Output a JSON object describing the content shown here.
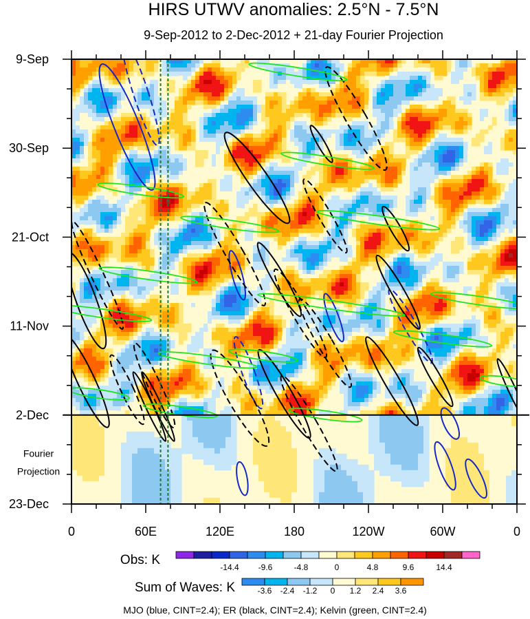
{
  "chart_data": {
    "type": "heatmap",
    "title": "HIRS UTWV anomalies: 2.5°N - 7.5°N",
    "subtitle": "9-Sep-2012 to 2-Dec-2012 + 21-day Fourier Projection",
    "x_ticks": [
      "0",
      "60E",
      "120E",
      "180",
      "120W",
      "60W",
      "0"
    ],
    "x_tick_values": [
      0,
      60,
      120,
      180,
      240,
      300,
      360
    ],
    "y_ticks": [
      "9-Sep",
      "30-Sep",
      "21-Oct",
      "11-Nov",
      "2-Dec",
      "23-Dec"
    ],
    "y_tick_values": [
      0,
      21,
      42,
      63,
      84,
      105
    ],
    "xlim": [
      0,
      360
    ],
    "ylim": [
      0,
      105
    ],
    "observation_end_day": 84,
    "projection_label": "Fourier\nProjection",
    "obs_colorbar": {
      "title": "Obs: K",
      "labels": [
        "-14.4",
        "-9.6",
        "-4.8",
        "0",
        "4.8",
        "9.6",
        "14.4"
      ],
      "levels": [
        -19.2,
        -16.8,
        -14.4,
        -12,
        -9.6,
        -7.2,
        -4.8,
        -2.4,
        0,
        2.4,
        4.8,
        7.2,
        9.6,
        12,
        14.4,
        16.8
      ],
      "colors": [
        "#8c28e6",
        "#1e1ea0",
        "#0a28c8",
        "#3264e6",
        "#2d8cf0",
        "#00b4f0",
        "#8cc8f0",
        "#c8e6fa",
        "#fffad2",
        "#ffe678",
        "#ffc81e",
        "#ffa000",
        "#ff6400",
        "#f01414",
        "#c80000",
        "#a02828",
        "#ff64c8"
      ]
    },
    "waves_colorbar": {
      "title": "Sum of Waves: K",
      "labels": [
        "-3.6",
        "-2.4",
        "-1.2",
        "0",
        "1.2",
        "2.4",
        "3.6"
      ],
      "levels": [
        -3.6,
        -2.4,
        -1.2,
        0,
        1.2,
        2.4,
        3.6
      ],
      "colors": [
        "#2d8cf0",
        "#00b4f0",
        "#8cc8f0",
        "#c8e6fa",
        "#fffad2",
        "#ffe678",
        "#ffc81e",
        "#ff9600"
      ]
    },
    "contour_legend": "MJO (blue, CINT=2.4); ER (black, CINT=2.4); Kelvin (green, CINT=2.4)",
    "reference_lines_lon": [
      72,
      78
    ],
    "colors": {
      "mjo": "#1428c8",
      "er": "#000000",
      "kelvin": "#1ee61e",
      "reference": "#1e7832"
    }
  }
}
